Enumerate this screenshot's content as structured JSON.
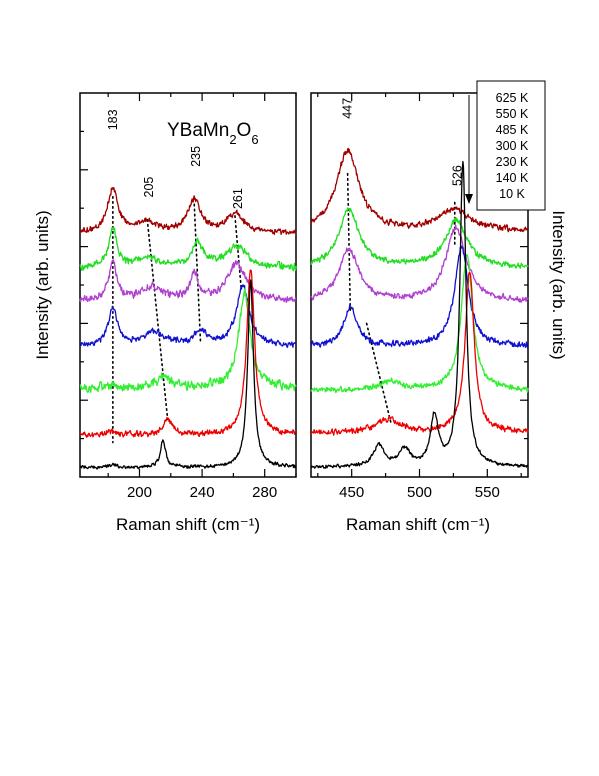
{
  "chart_data": [
    {
      "type": "line",
      "panel": "left",
      "title": "",
      "annotation_compound": {
        "base": "YBaMn",
        "sub1": "2",
        "mid": "O",
        "sub2": "6"
      },
      "xlabel": "Raman shift (cm⁻¹)",
      "ylabel": "Intensity (arb. units)",
      "xlim": [
        162,
        300
      ],
      "xticks": [
        200,
        240,
        280
      ],
      "y_ticks_labeled": false,
      "grid": false,
      "series": [
        {
          "name": "625 K",
          "color": "#a00000",
          "offset": 6.35,
          "noise": 0.05,
          "peaks": [
            [
              183,
              1.15,
              4
            ],
            [
              205,
              0.28,
              8
            ],
            [
              235,
              0.85,
              5
            ],
            [
              261,
              0.48,
              7
            ]
          ]
        },
        {
          "name": "550 K",
          "color": "#22dd22",
          "offset": 5.45,
          "noise": 0.06,
          "peaks": [
            [
              183,
              1.0,
              3
            ],
            [
              205,
              0.28,
              8
            ],
            [
              237,
              0.65,
              4
            ],
            [
              262,
              0.55,
              8
            ]
          ]
        },
        {
          "name": "485 K",
          "color": "#b040d0",
          "offset": 4.6,
          "noise": 0.06,
          "peaks": [
            [
              183,
              1.0,
              3
            ],
            [
              208,
              0.32,
              8
            ],
            [
              235,
              0.68,
              3
            ],
            [
              262,
              0.95,
              7
            ]
          ]
        },
        {
          "name": "300 K",
          "color": "#1010d0",
          "offset": 3.4,
          "noise": 0.05,
          "peaks": [
            [
              183,
              1.0,
              3.5
            ],
            [
              209,
              0.35,
              9
            ],
            [
              239,
              0.35,
              5
            ],
            [
              266,
              1.55,
              5
            ]
          ]
        },
        {
          "name": "230 K",
          "color": "#33ee33",
          "offset": 2.3,
          "noise": 0.08,
          "peaks": [
            [
              183,
              0.12,
              4
            ],
            [
              216,
              0.3,
              6
            ],
            [
              267,
              2.45,
              4.5
            ]
          ]
        },
        {
          "name": "140 K",
          "color": "#ee0000",
          "offset": 1.1,
          "noise": 0.05,
          "peaks": [
            [
              183,
              0.08,
              4
            ],
            [
              218,
              0.45,
              3
            ],
            [
              271,
              4.35,
              3
            ]
          ]
        },
        {
          "name": "10 K",
          "color": "#000000",
          "offset": 0.25,
          "noise": 0.03,
          "peaks": [
            [
              183,
              0.05,
              4
            ],
            [
              215,
              0.7,
              2
            ],
            [
              271,
              4.85,
              2.2
            ]
          ]
        }
      ],
      "peak_labels": [
        {
          "text": "183",
          "x": 183,
          "y": 9.3
        },
        {
          "text": "205",
          "x": 206,
          "y": 7.55
        },
        {
          "text": "235",
          "x": 236,
          "y": 8.35
        },
        {
          "text": "261",
          "x": 263,
          "y": 7.25
        }
      ],
      "guide_lines": [
        [
          [
            183,
            7.3
          ],
          [
            183,
            0.9
          ]
        ],
        [
          [
            205,
            6.7
          ],
          [
            218,
            1.5
          ]
        ],
        [
          [
            235,
            7.1
          ],
          [
            239,
            3.5
          ]
        ],
        [
          [
            261,
            6.8
          ],
          [
            265,
            4.9
          ]
        ]
      ]
    },
    {
      "type": "line",
      "panel": "right",
      "title": "",
      "xlabel": "Raman shift (cm⁻¹)",
      "ylabel": "Intensity (arb. units)",
      "xlim": [
        420,
        580
      ],
      "xticks": [
        450,
        500,
        550
      ],
      "y_ticks_labeled": false,
      "grid": false,
      "legend": {
        "position": "top-right",
        "arrow": "down",
        "entries": [
          "625 K",
          "550 K",
          "485 K",
          "300 K",
          "230 K",
          "140 K",
          "10 K"
        ]
      },
      "series": [
        {
          "name": "625 K",
          "color": "#a00000",
          "offset": 6.4,
          "noise": 0.05,
          "peaks": [
            [
              447,
              2.1,
              10
            ],
            [
              526,
              0.55,
              14
            ]
          ]
        },
        {
          "name": "550 K",
          "color": "#22dd22",
          "offset": 5.45,
          "noise": 0.05,
          "peaks": [
            [
              448,
              1.5,
              9
            ],
            [
              527,
              1.2,
              10
            ]
          ]
        },
        {
          "name": "485 K",
          "color": "#b040d0",
          "offset": 4.55,
          "noise": 0.05,
          "peaks": [
            [
              448,
              1.35,
              9
            ],
            [
              527,
              1.95,
              9
            ]
          ]
        },
        {
          "name": "300 K",
          "color": "#1010d0",
          "offset": 3.4,
          "noise": 0.05,
          "peaks": [
            [
              449,
              1.0,
              6
            ],
            [
              531,
              2.6,
              6
            ]
          ]
        },
        {
          "name": "230 K",
          "color": "#33ee33",
          "offset": 2.25,
          "noise": 0.05,
          "peaks": [
            [
              478,
              0.22,
              10
            ],
            [
              535,
              3.55,
              5
            ]
          ]
        },
        {
          "name": "140 K",
          "color": "#ee0000",
          "offset": 1.15,
          "noise": 0.05,
          "peaks": [
            [
              477,
              0.35,
              10
            ],
            [
              537,
              4.2,
              4
            ]
          ]
        },
        {
          "name": "10 K",
          "color": "#000000",
          "offset": 0.25,
          "noise": 0.03,
          "peaks": [
            [
              470,
              0.55,
              5
            ],
            [
              489,
              0.45,
              5
            ],
            [
              511,
              1.3,
              3.5
            ],
            [
              532,
              7.9,
              2.8
            ]
          ]
        }
      ],
      "peak_labels": [
        {
          "text": "447",
          "x": 447,
          "y": 9.6
        },
        {
          "text": "526",
          "x": 528,
          "y": 7.85
        }
      ],
      "guide_lines": [
        [
          [
            447,
            7.9
          ],
          [
            449,
            4.3
          ]
        ],
        [
          [
            461,
            4.0
          ],
          [
            479,
            1.4
          ]
        ],
        [
          [
            526,
            7.15
          ],
          [
            526,
            6.0
          ]
        ]
      ]
    }
  ]
}
